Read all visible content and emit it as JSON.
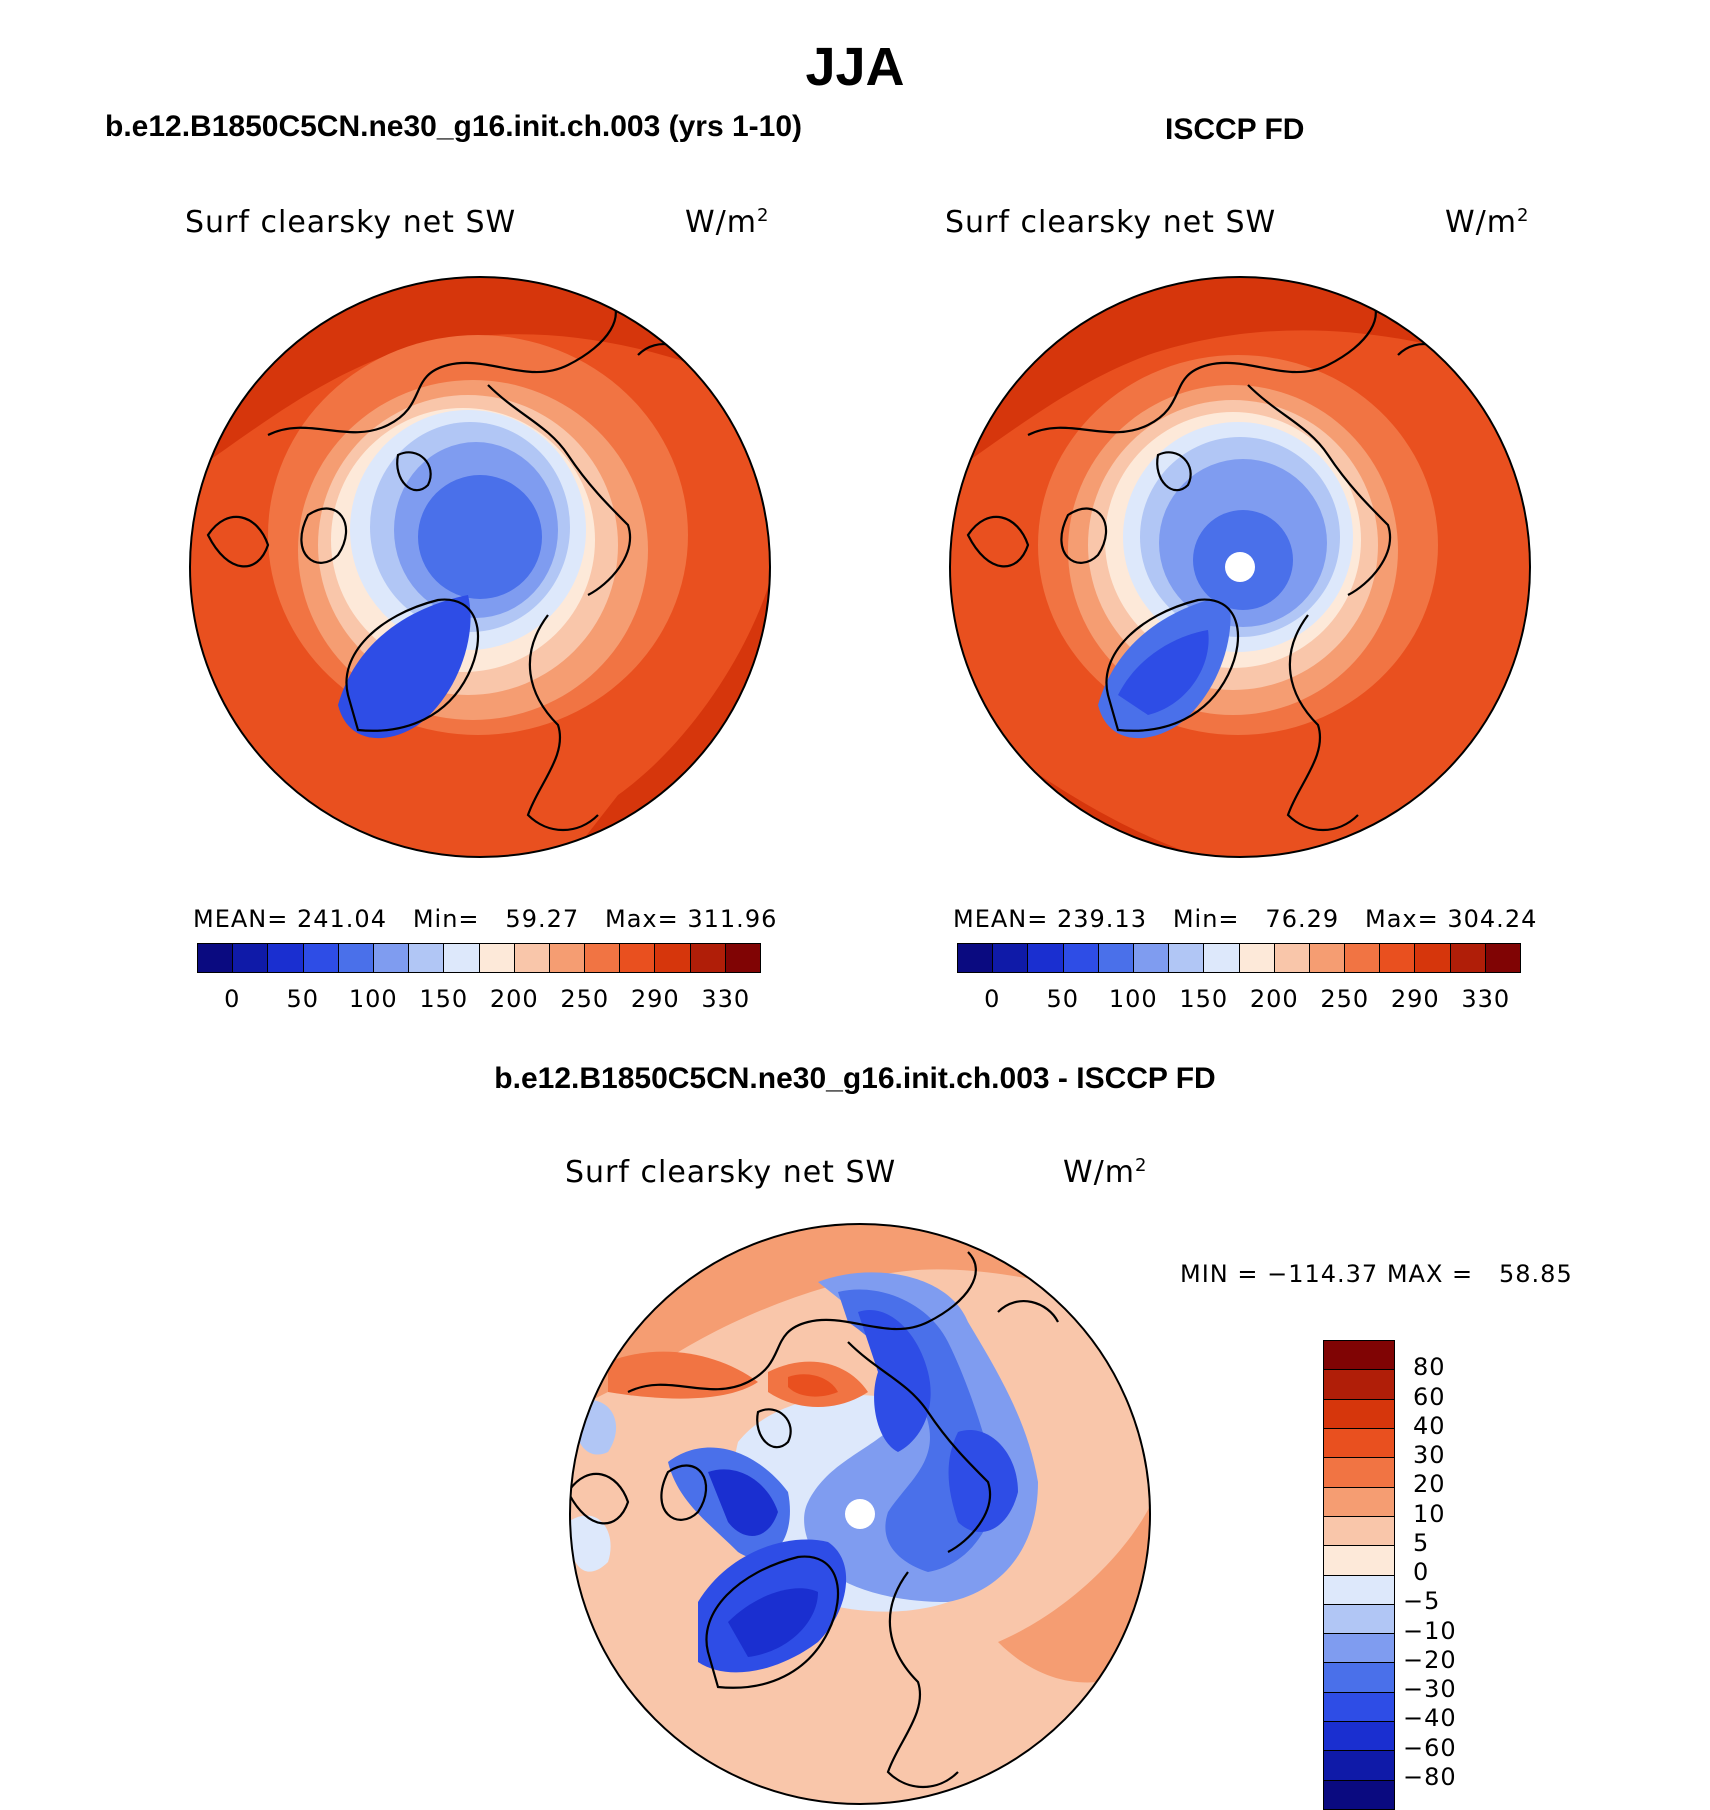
{
  "title": "JJA",
  "panels": {
    "model": {
      "title": "b.e12.B1850C5CN.ne30_g16.init.ch.003 (yrs 1-10)",
      "variable": "Surf clearsky net SW",
      "units_base": "W/m",
      "units_exp": "2",
      "stats": "MEAN= 241.04   Min=   59.27   Max= 311.96"
    },
    "obs": {
      "title": "ISCCP FD",
      "variable": "Surf clearsky net SW",
      "units_base": "W/m",
      "units_exp": "2",
      "stats": "MEAN= 239.13   Min=   76.29   Max= 304.24"
    },
    "diff": {
      "title": "b.e12.B1850C5CN.ne30_g16.init.ch.003 - ISCCP FD",
      "variable": "Surf clearsky net SW",
      "units_base": "W/m",
      "units_exp": "2",
      "stats": "MIN = −114.37 MAX =   58.85"
    }
  },
  "colorbar_abs": {
    "colors": [
      "#0a0a80",
      "#0f1aa8",
      "#1a2fd0",
      "#2e4de6",
      "#4a70ea",
      "#7f9cf0",
      "#b1c6f5",
      "#dde8fb",
      "#fde9d9",
      "#f9c6aa",
      "#f59d72",
      "#f17443",
      "#e9501f",
      "#d6360c",
      "#b01e08",
      "#800404"
    ],
    "tick_labels": [
      "0",
      "50",
      "100",
      "150",
      "200",
      "250",
      "290",
      "330"
    ]
  },
  "colorbar_diff": {
    "colors": [
      "#800404",
      "#b01e08",
      "#d6360c",
      "#e9501f",
      "#f17443",
      "#f59d72",
      "#f9c6aa",
      "#fde9d9",
      "#dde8fb",
      "#b1c6f5",
      "#7f9cf0",
      "#4a70ea",
      "#2e4de6",
      "#1a2fd0",
      "#0f1aa8",
      "#0a0a80"
    ],
    "tick_labels": [
      "80",
      "60",
      "40",
      "30",
      "20",
      "10",
      "5",
      "0",
      "−5",
      "−10",
      "−20",
      "−30",
      "−40",
      "−60",
      "−80"
    ]
  }
}
